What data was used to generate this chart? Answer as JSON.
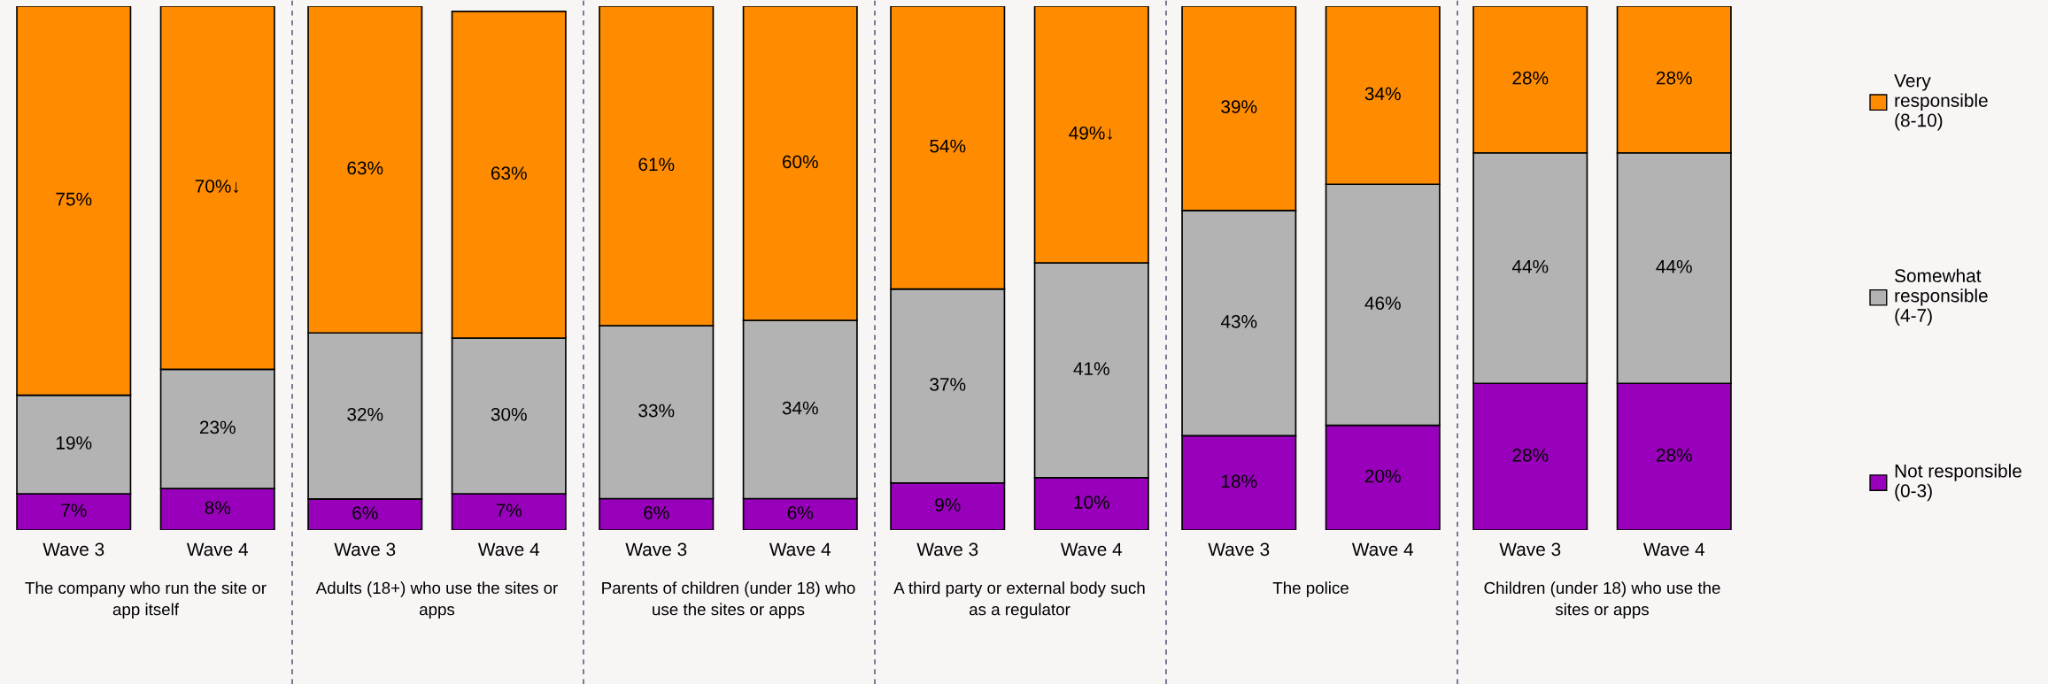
{
  "chart_data": [
    {
      "type": "bar",
      "stacked": true,
      "xlabel": "The company who run the site or app itself",
      "categories": [
        "Wave 3",
        "Wave 4"
      ],
      "series": [
        {
          "color": "#9900bb",
          "values": [
            7,
            8
          ],
          "value_labels": [
            "7%",
            "8%"
          ]
        },
        {
          "color": "#b3b3b3",
          "values": [
            19,
            23
          ],
          "value_labels": [
            "19%",
            "23%"
          ]
        },
        {
          "color": "#ff8c00",
          "values": [
            75,
            70
          ],
          "value_labels": [
            "75%",
            "70%↓"
          ]
        }
      ]
    },
    {
      "type": "bar",
      "stacked": true,
      "xlabel": "Adults (18+) who use the sites or apps",
      "categories": [
        "Wave 3",
        "Wave 4"
      ],
      "series": [
        {
          "color": "#9900bb",
          "values": [
            6,
            7
          ],
          "value_labels": [
            "6%",
            "7%"
          ]
        },
        {
          "color": "#b3b3b3",
          "values": [
            32,
            30
          ],
          "value_labels": [
            "32%",
            "30%"
          ]
        },
        {
          "color": "#ff8c00",
          "values": [
            63,
            63
          ],
          "value_labels": [
            "63%",
            "63%"
          ]
        }
      ]
    },
    {
      "type": "bar",
      "stacked": true,
      "xlabel": "Parents of children (under 18) who use the sites or apps",
      "categories": [
        "Wave 3",
        "Wave 4"
      ],
      "series": [
        {
          "color": "#9900bb",
          "values": [
            6,
            6
          ],
          "value_labels": [
            "6%",
            "6%"
          ]
        },
        {
          "color": "#b3b3b3",
          "values": [
            33,
            34
          ],
          "value_labels": [
            "33%",
            "34%"
          ]
        },
        {
          "color": "#ff8c00",
          "values": [
            61,
            60
          ],
          "value_labels": [
            "61%",
            "60%"
          ]
        }
      ]
    },
    {
      "type": "bar",
      "stacked": true,
      "xlabel": "A third party or external body such as a regulator",
      "categories": [
        "Wave 3",
        "Wave 4"
      ],
      "series": [
        {
          "color": "#9900bb",
          "values": [
            9,
            10
          ],
          "value_labels": [
            "9%",
            "10%"
          ]
        },
        {
          "color": "#b3b3b3",
          "values": [
            37,
            41
          ],
          "value_labels": [
            "37%",
            "41%"
          ]
        },
        {
          "color": "#ff8c00",
          "values": [
            54,
            49
          ],
          "value_labels": [
            "54%",
            "49%↓"
          ]
        }
      ]
    },
    {
      "type": "bar",
      "stacked": true,
      "xlabel": "The police",
      "categories": [
        "Wave 3",
        "Wave 4"
      ],
      "series": [
        {
          "color": "#9900bb",
          "values": [
            18,
            20
          ],
          "value_labels": [
            "18%",
            "20%"
          ]
        },
        {
          "color": "#b3b3b3",
          "values": [
            43,
            46
          ],
          "value_labels": [
            "43%",
            "46%"
          ]
        },
        {
          "color": "#ff8c00",
          "values": [
            39,
            34
          ],
          "value_labels": [
            "39%",
            "34%"
          ]
        }
      ]
    },
    {
      "type": "bar",
      "stacked": true,
      "xlabel": "Children (under 18) who use the sites or apps",
      "categories": [
        "Wave 3",
        "Wave 4"
      ],
      "legend": "right",
      "series": [
        {
          "name": "Not responsible (0-3)",
          "color": "#9900bb",
          "values": [
            28,
            28
          ],
          "value_labels": [
            "28%",
            "28%"
          ]
        },
        {
          "name": "Somewhat responsible (4-7)",
          "color": "#b3b3b3",
          "values": [
            44,
            44
          ],
          "value_labels": [
            "44%",
            "44%"
          ]
        },
        {
          "name": "Very responsible (8-10)",
          "color": "#ff8c00",
          "values": [
            28,
            28
          ],
          "value_labels": [
            "28%",
            "28%"
          ]
        }
      ]
    }
  ]
}
